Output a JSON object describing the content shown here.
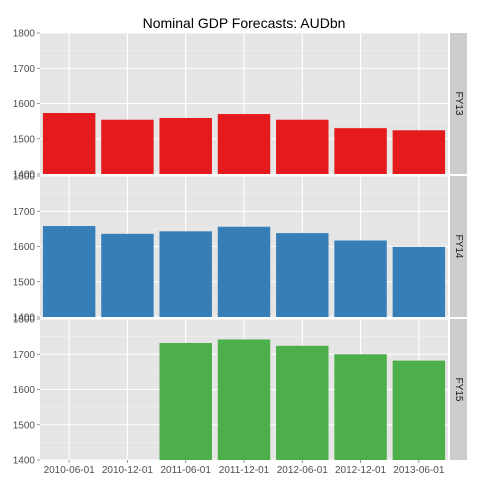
{
  "chart_data": {
    "type": "bar",
    "title": "Nominal GDP Forecasts: AUDbn",
    "xlabel": "",
    "ylabel": "",
    "categories": [
      "2010-06-01",
      "2010-12-01",
      "2011-06-01",
      "2011-12-01",
      "2012-06-01",
      "2012-12-01",
      "2013-06-01"
    ],
    "ylim": [
      1400,
      1800
    ],
    "yticks": [
      1400,
      1500,
      1600,
      1700,
      1800
    ],
    "grid": true,
    "legend": "none",
    "facets": [
      {
        "label": "FY13",
        "color": "#e41a1c",
        "values": [
          1573,
          1554,
          1559,
          1570,
          1554,
          1530,
          1524
        ]
      },
      {
        "label": "FY14",
        "color": "#377eb8",
        "values": [
          1658,
          1636,
          1643,
          1656,
          1638,
          1617,
          1599
        ]
      },
      {
        "label": "FY15",
        "color": "#4daf4a",
        "values": [
          null,
          null,
          1732,
          1742,
          1724,
          1700,
          1682
        ]
      }
    ]
  },
  "colors": {
    "panel_bg": "#e5e5e5",
    "strip_bg": "#cccccc",
    "grid_major": "#ffffff",
    "grid_minor": "#f2f2f2"
  }
}
